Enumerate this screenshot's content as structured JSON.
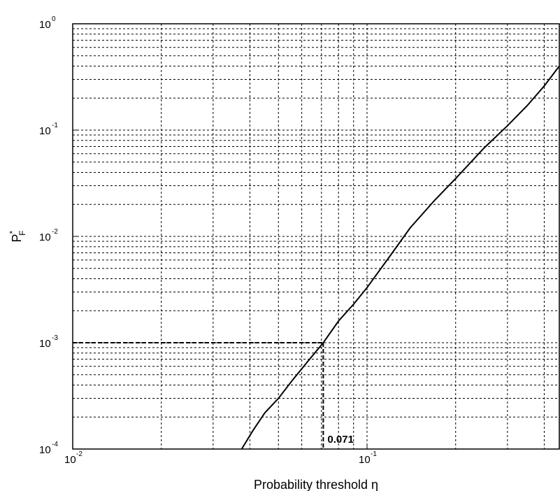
{
  "chart_data": {
    "type": "line",
    "x_scale": "log",
    "y_scale": "log",
    "xlim": [
      0.01,
      0.45
    ],
    "ylim": [
      0.0001,
      1
    ],
    "grid": true,
    "xlabel": "Probability threshold η",
    "ylabel": {
      "base": "P",
      "superscript": "*",
      "subscript": "F"
    },
    "x_ticks": [
      {
        "value": 0.01,
        "base": "10",
        "exp": "-2"
      },
      {
        "value": 0.1,
        "base": "10",
        "exp": "-1"
      }
    ],
    "y_ticks": [
      {
        "value": 0.0001,
        "base": "10",
        "exp": "-4"
      },
      {
        "value": 0.001,
        "base": "10",
        "exp": "-3"
      },
      {
        "value": 0.01,
        "base": "10",
        "exp": "-2"
      },
      {
        "value": 0.1,
        "base": "10",
        "exp": "-1"
      },
      {
        "value": 1,
        "base": "10",
        "exp": "0"
      }
    ],
    "series": [
      {
        "x": [
          0.0375,
          0.041,
          0.045,
          0.05,
          0.056,
          0.063,
          0.071,
          0.08,
          0.09,
          0.1,
          0.12,
          0.14,
          0.17,
          0.2,
          0.25,
          0.3,
          0.35,
          0.4,
          0.45
        ],
        "y": [
          0.0001,
          0.00015,
          0.00022,
          0.0003,
          0.00045,
          0.00067,
          0.001,
          0.0016,
          0.0023,
          0.0033,
          0.0066,
          0.012,
          0.022,
          0.035,
          0.068,
          0.11,
          0.17,
          0.26,
          0.4
        ]
      }
    ],
    "reference": {
      "x": 0.071,
      "y": 0.001,
      "label": "0.071"
    }
  }
}
